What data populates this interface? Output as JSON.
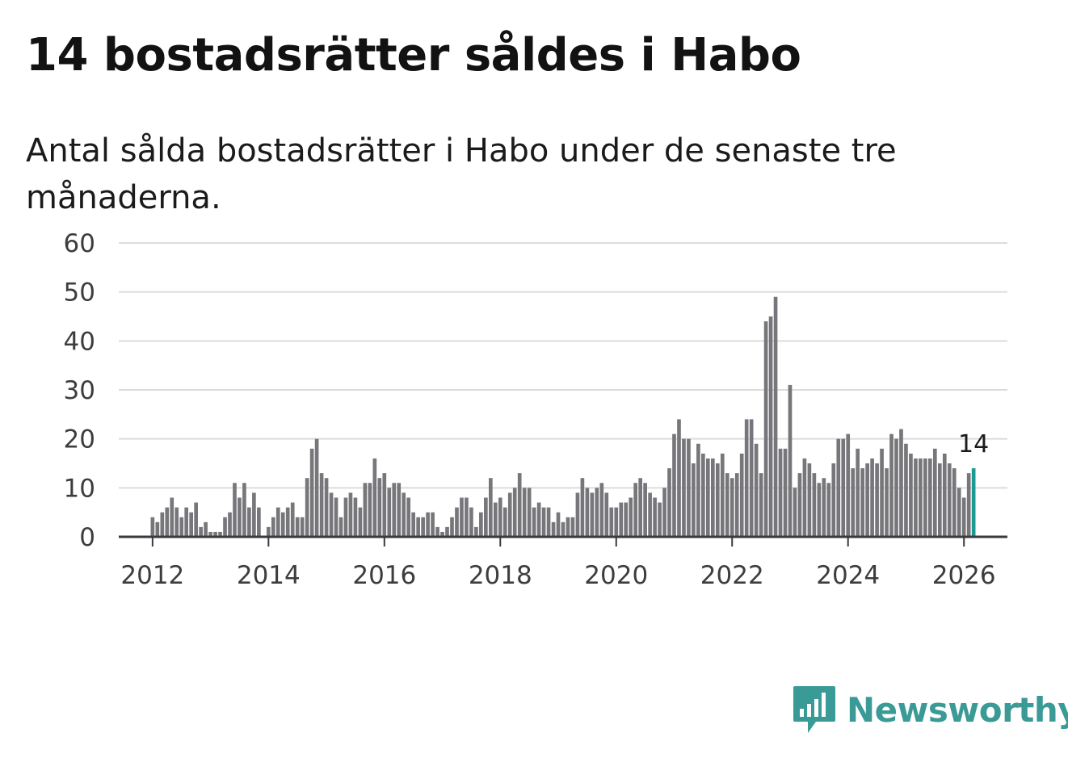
{
  "title": "14 bostadsrätter såldes i Habo",
  "subtitle": "Antal sålda bostadsrätter i Habo under de senaste tre månaderna.",
  "brand": {
    "name": "Newsworthy",
    "icon": "newsworthy-logo-icon",
    "color": "#3a9a96"
  },
  "colors": {
    "bar": "#77767a",
    "highlight": "#1a9a93",
    "grid": "#dcdcdc",
    "axis": "#3a3a3a"
  },
  "chart_data": {
    "type": "bar",
    "title": "",
    "xlabel": "",
    "ylabel": "",
    "ylim": [
      0,
      60
    ],
    "y_ticks": [
      0,
      10,
      20,
      30,
      40,
      50,
      60
    ],
    "x_ticks": [
      "2012",
      "2014",
      "2016",
      "2018",
      "2020",
      "2022",
      "2024",
      "2026"
    ],
    "x_range": [
      "2011-06",
      "2026-10"
    ],
    "grid": true,
    "highlight_label": "14",
    "series": [
      {
        "start": "2012-01",
        "frequency": "monthly",
        "values": [
          4,
          3,
          5,
          6,
          8,
          6,
          4,
          6,
          5,
          7,
          2,
          3,
          1,
          1,
          1,
          4,
          5,
          11,
          8,
          11,
          6,
          9,
          6,
          0,
          2,
          4,
          6,
          5,
          6,
          7,
          4,
          4,
          12,
          18,
          20,
          13,
          12,
          9,
          8,
          4,
          8,
          9,
          8,
          6,
          11,
          11,
          16,
          12,
          13,
          10,
          11,
          11,
          9,
          8,
          5,
          4,
          4,
          5,
          5,
          2,
          1,
          2,
          4,
          6,
          8,
          8,
          6,
          2,
          5,
          8,
          12,
          7,
          8,
          6,
          9,
          10,
          13,
          10,
          10,
          6,
          7,
          6,
          6,
          3,
          5,
          3,
          4,
          4,
          9,
          12,
          10,
          9,
          10,
          11,
          9,
          6,
          6,
          7,
          7,
          8,
          11,
          12,
          11,
          9,
          8,
          7,
          10,
          14,
          21,
          24,
          20,
          20,
          15,
          19,
          17,
          16,
          16,
          15,
          17,
          13,
          12,
          13,
          17,
          24,
          24,
          19,
          13,
          44,
          45,
          49,
          18,
          18,
          31,
          10,
          13,
          16,
          15,
          13,
          11,
          12,
          11,
          15,
          20,
          20,
          21,
          14,
          18,
          14,
          15,
          16,
          15,
          18,
          14,
          21,
          20,
          22,
          19,
          17,
          16,
          16,
          16,
          16,
          18,
          15,
          17,
          15,
          14,
          10,
          8,
          13,
          14
        ]
      }
    ]
  }
}
